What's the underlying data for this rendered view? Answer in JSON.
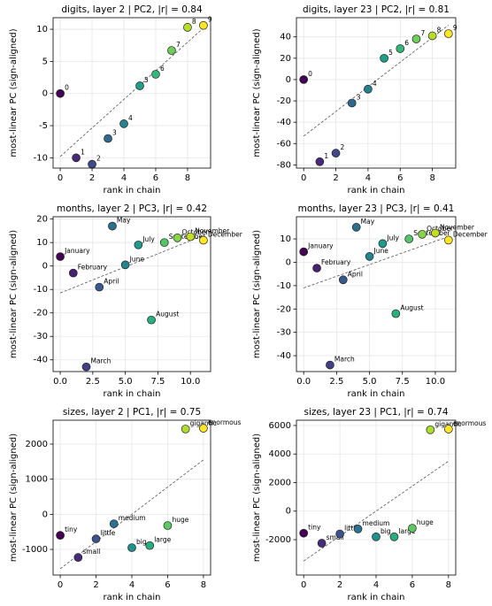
{
  "chart_data": [
    {
      "type": "scatter",
      "title": "digits, layer 2  |  PC2, |r| = 0.84",
      "x_label": "rank in chain",
      "y_label": "most-linear PC (sign-aligned)",
      "x": [
        0,
        1,
        2,
        3,
        4,
        5,
        6,
        7,
        8,
        9
      ],
      "values": [
        0,
        -10,
        -11,
        -7,
        -4.7,
        1.2,
        3,
        6.7,
        10.3,
        10.6
      ],
      "labels": [
        "0",
        "1",
        "2",
        "3",
        "4",
        "5",
        "6",
        "7",
        "8",
        "9"
      ],
      "colors": [
        "#440154",
        "#482878",
        "#3e4989",
        "#31688e",
        "#26828e",
        "#1f9e89",
        "#35b779",
        "#6ece58",
        "#b5de2b",
        "#fde725"
      ],
      "trend": {
        "x": [
          0,
          9
        ],
        "y": [
          -9.8,
          10.2
        ]
      },
      "xlim": [
        -0.45,
        9.45
      ],
      "ylim": [
        -11.6,
        11.8
      ],
      "xticks": [
        0,
        2,
        4,
        6,
        8
      ],
      "yticks": [
        -10,
        -5,
        0,
        5,
        10
      ],
      "grid": true
    },
    {
      "type": "scatter",
      "title": "digits, layer 23  |  PC2, |r| = 0.81",
      "x_label": "rank in chain",
      "y_label": "most-linear PC (sign-aligned)",
      "x": [
        0,
        1,
        2,
        3,
        4,
        5,
        6,
        7,
        8,
        9
      ],
      "values": [
        0,
        -77,
        -69,
        -22,
        -9,
        20,
        29,
        38,
        41,
        43
      ],
      "labels": [
        "0",
        "1",
        "2",
        "3",
        "4",
        "5",
        "6",
        "7",
        "8",
        "9"
      ],
      "colors": [
        "#440154",
        "#482878",
        "#3e4989",
        "#31688e",
        "#26828e",
        "#1f9e89",
        "#35b779",
        "#6ece58",
        "#b5de2b",
        "#fde725"
      ],
      "trend": {
        "x": [
          0,
          9
        ],
        "y": [
          -53,
          51
        ]
      },
      "xlim": [
        -0.45,
        9.45
      ],
      "ylim": [
        -83,
        58
      ],
      "xticks": [
        0,
        2,
        4,
        6,
        8
      ],
      "yticks": [
        -80,
        -60,
        -40,
        -20,
        0,
        20,
        40
      ],
      "grid": true
    },
    {
      "type": "scatter",
      "title": "months, layer 2  |  PC3, |r| = 0.42",
      "x_label": "rank in chain",
      "y_label": "most-linear PC (sign-aligned)",
      "x": [
        0,
        1,
        2,
        3,
        4,
        5,
        6,
        7,
        8,
        9,
        10,
        11
      ],
      "values": [
        4,
        -3,
        -43,
        -9,
        17,
        0.5,
        9,
        -23,
        10,
        12,
        12.5,
        11
      ],
      "labels": [
        "January",
        "February",
        "March",
        "April",
        "May",
        "June",
        "July",
        "August",
        "September",
        "October",
        "November",
        "December"
      ],
      "colors": [
        "#440154",
        "#482173",
        "#433e85",
        "#38598c",
        "#2d708e",
        "#25858e",
        "#1e9b8a",
        "#2ab07f",
        "#52c569",
        "#86d549",
        "#c2df23",
        "#fde725"
      ],
      "trend": {
        "x": [
          0,
          11
        ],
        "y": [
          -11.5,
          13
        ]
      },
      "xlim": [
        -0.55,
        11.55
      ],
      "ylim": [
        -45,
        21
      ],
      "xticks": [
        {
          "value": 0,
          "label": "0.0"
        },
        {
          "value": 2.5,
          "label": "2.5"
        },
        {
          "value": 5,
          "label": "5.0"
        },
        {
          "value": 7.5,
          "label": "7.5"
        },
        {
          "value": 10,
          "label": "10.0"
        }
      ],
      "yticks": [
        -40,
        -30,
        -20,
        -10,
        0,
        10,
        20
      ],
      "grid": true
    },
    {
      "type": "scatter",
      "title": "months, layer 23  |  PC3, |r| = 0.41",
      "x_label": "rank in chain",
      "y_label": "most-linear PC (sign-aligned)",
      "x": [
        0,
        1,
        2,
        3,
        4,
        5,
        6,
        7,
        8,
        9,
        10,
        11
      ],
      "values": [
        4.5,
        -2.5,
        -44,
        -7.5,
        15,
        2.5,
        8,
        -22,
        10,
        12,
        12.5,
        9.5
      ],
      "labels": [
        "January",
        "February",
        "March",
        "April",
        "May",
        "June",
        "July",
        "August",
        "September",
        "October",
        "November",
        "December"
      ],
      "colors": [
        "#440154",
        "#482173",
        "#433e85",
        "#38598c",
        "#2d708e",
        "#25858e",
        "#1e9b8a",
        "#2ab07f",
        "#52c569",
        "#86d549",
        "#c2df23",
        "#fde725"
      ],
      "trend": {
        "x": [
          0,
          11
        ],
        "y": [
          -11,
          11
        ]
      },
      "xlim": [
        -0.55,
        11.55
      ],
      "ylim": [
        -46.8,
        19.5
      ],
      "xticks": [
        {
          "value": 0,
          "label": "0.0"
        },
        {
          "value": 2.5,
          "label": "2.5"
        },
        {
          "value": 5,
          "label": "5.0"
        },
        {
          "value": 7.5,
          "label": "7.5"
        },
        {
          "value": 10,
          "label": "10.0"
        }
      ],
      "yticks": [
        -40,
        -30,
        -20,
        -10,
        0,
        10
      ],
      "grid": true
    },
    {
      "type": "scatter",
      "title": "sizes, layer 2  |  PC1, |r| = 0.75",
      "x_label": "rank in chain",
      "y_label": "most-linear PC (sign-aligned)",
      "x": [
        0,
        1,
        2,
        3,
        4,
        5,
        6,
        7,
        8
      ],
      "values": [
        -600,
        -1230,
        -700,
        -270,
        -950,
        -890,
        -320,
        2430,
        2450
      ],
      "labels": [
        "tiny",
        "small",
        "little",
        "medium",
        "big",
        "large",
        "huge",
        "gigantic",
        "enormous"
      ],
      "colors": [
        "#440154",
        "#472c7a",
        "#3b528b",
        "#2c728e",
        "#21918c",
        "#28ae80",
        "#5ec962",
        "#addc30",
        "#fde725"
      ],
      "trend": {
        "x": [
          0,
          8
        ],
        "y": [
          -1550,
          1550
        ]
      },
      "xlim": [
        -0.4,
        8.4
      ],
      "ylim": [
        -1730,
        2680
      ],
      "xticks": [
        0,
        2,
        4,
        6,
        8
      ],
      "yticks": [
        -1000,
        0,
        1000,
        2000
      ],
      "grid": true
    },
    {
      "type": "scatter",
      "title": "sizes, layer 23  |  PC1, |r| = 0.74",
      "x_label": "rank in chain",
      "y_label": "most-linear PC (sign-aligned)",
      "x": [
        0,
        1,
        2,
        3,
        4,
        5,
        6,
        7,
        8
      ],
      "values": [
        -1550,
        -2250,
        -1600,
        -1250,
        -1800,
        -1800,
        -1200,
        5700,
        5750
      ],
      "labels": [
        "tiny",
        "small",
        "little",
        "medium",
        "big",
        "large",
        "huge",
        "gigantic",
        "enormous"
      ],
      "colors": [
        "#440154",
        "#472c7a",
        "#3b528b",
        "#2c728e",
        "#21918c",
        "#28ae80",
        "#5ec962",
        "#addc30",
        "#fde725"
      ],
      "trend": {
        "x": [
          0,
          8
        ],
        "y": [
          -3500,
          3500
        ]
      },
      "xlim": [
        -0.4,
        8.4
      ],
      "ylim": [
        -4480,
        6370
      ],
      "xticks": [
        0,
        2,
        4,
        6,
        8
      ],
      "yticks": [
        -2000,
        0,
        2000,
        4000,
        6000
      ],
      "grid": true
    }
  ]
}
